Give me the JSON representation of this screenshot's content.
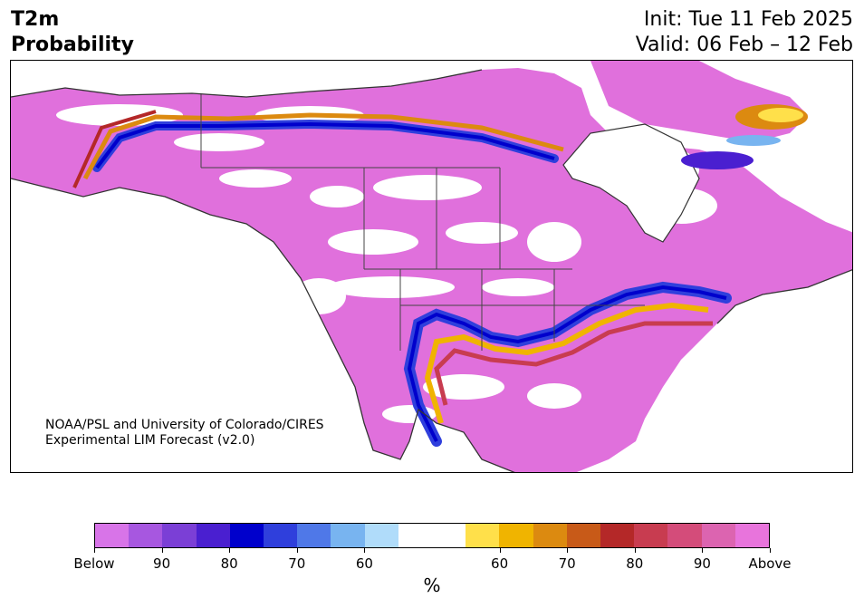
{
  "header": {
    "variable": "T2m",
    "product": "Probability",
    "init": "Init: Tue 11 Feb 2025",
    "valid": "Valid: 06 Feb – 12 Feb"
  },
  "map": {
    "credit_line1": "NOAA/PSL and University of Colorado/CIRES",
    "credit_line2": "Experimental LIM Forecast (v2.0)"
  },
  "colorbar": {
    "colors": [
      "#d874e8",
      "#a757e0",
      "#7b3fd6",
      "#4a1fd0",
      "#0000cc",
      "#2f3fdc",
      "#4f78e8",
      "#78b4f0",
      "#b0dcfa",
      "#ffffff",
      "#ffffff",
      "#ffe04a",
      "#f0b400",
      "#dc8a10",
      "#c85a18",
      "#b42828",
      "#c83c50",
      "#d44c7a",
      "#dc64b0",
      "#e874dc"
    ],
    "tick_labels": [
      "Below",
      "90",
      "80",
      "70",
      "60",
      "60",
      "70",
      "80",
      "90",
      "Above"
    ],
    "units": "%"
  }
}
